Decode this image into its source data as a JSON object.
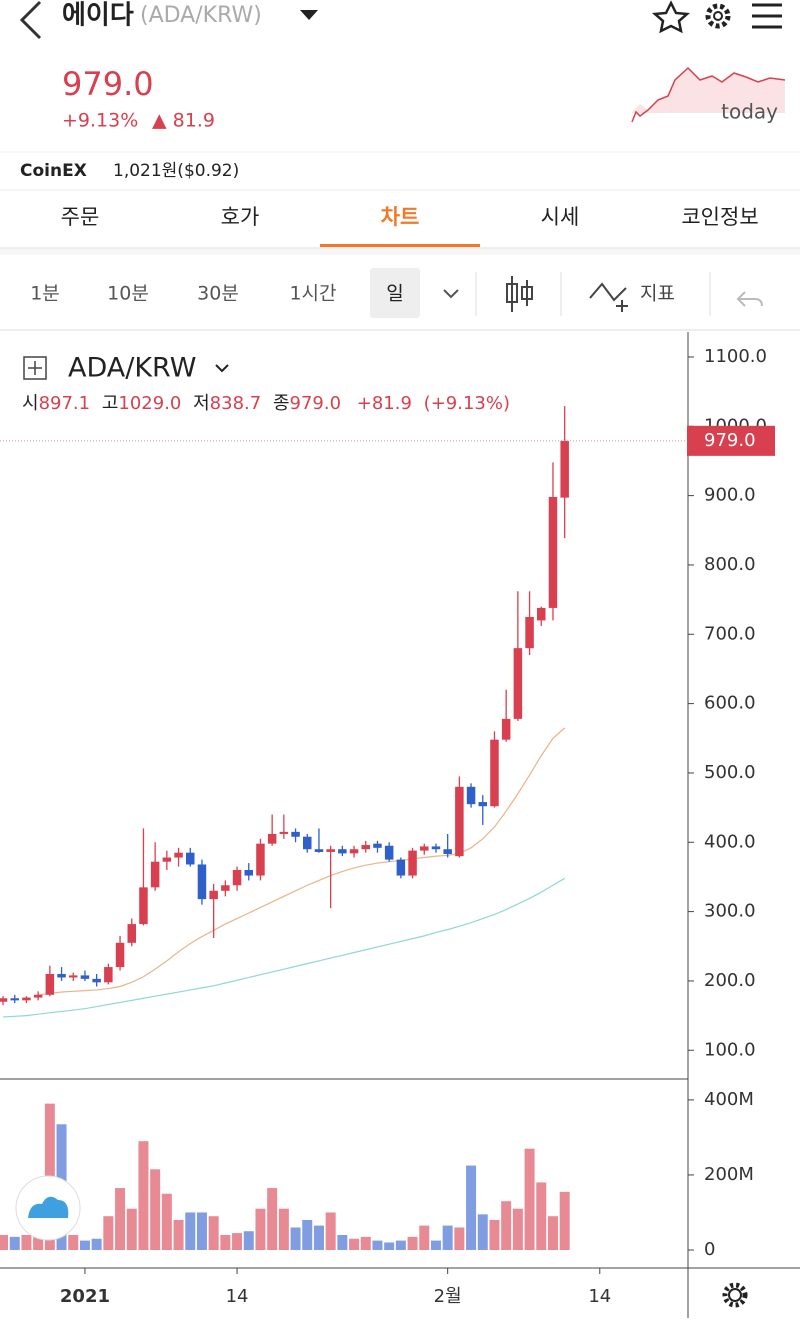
{
  "header": {
    "name": "에이다",
    "pair": "(ADA/KRW)",
    "price": "979.0",
    "change_pct": "+9.13%",
    "change_abs": "▲ 81.9",
    "spark_label": "today"
  },
  "exchange": {
    "name": "CoinEX",
    "price": "1,021원($0.92)"
  },
  "tabs": [
    "주문",
    "호가",
    "차트",
    "시세",
    "코인정보"
  ],
  "active_tab": 2,
  "intervals": [
    "1분",
    "10분",
    "30분",
    "1시간",
    "일"
  ],
  "active_interval": 4,
  "indicator_button": "지표",
  "chart_data": {
    "type": "candlestick",
    "title": "ADA/KRW",
    "ohlc_keys": [
      "시",
      "고",
      "저",
      "종"
    ],
    "ohlc_labels": [
      "897.1",
      "1029.0",
      "838.7",
      "979.0"
    ],
    "change_label": "+81.9",
    "change_pct_label": "(+9.13%)",
    "open": [
      170,
      175,
      172,
      176,
      180,
      210,
      205,
      208,
      203,
      198,
      220,
      255,
      282,
      335,
      372,
      378,
      385,
      368,
      318,
      330,
      338,
      360,
      352,
      398,
      412,
      415,
      408,
      390,
      386,
      390,
      384,
      390,
      398,
      395,
      375,
      352,
      388,
      394,
      390,
      380,
      480,
      458,
      452,
      548,
      578,
      680,
      720,
      738,
      897.1
    ],
    "high": [
      178,
      180,
      178,
      185,
      222,
      220,
      212,
      215,
      210,
      225,
      265,
      290,
      420,
      400,
      388,
      392,
      392,
      375,
      340,
      345,
      365,
      370,
      405,
      440,
      440,
      420,
      412,
      420,
      395,
      395,
      395,
      402,
      402,
      400,
      378,
      392,
      398,
      398,
      412,
      495,
      485,
      468,
      560,
      620,
      762,
      762,
      740,
      948,
      1029
    ],
    "low": [
      165,
      168,
      168,
      172,
      178,
      200,
      200,
      200,
      192,
      195,
      215,
      250,
      280,
      330,
      360,
      365,
      365,
      310,
      262,
      322,
      330,
      345,
      345,
      395,
      405,
      400,
      385,
      385,
      305,
      380,
      378,
      385,
      385,
      372,
      348,
      348,
      382,
      385,
      378,
      378,
      450,
      425,
      450,
      545,
      575,
      670,
      712,
      720,
      838.7
    ],
    "close": [
      175,
      172,
      176,
      180,
      210,
      205,
      208,
      203,
      198,
      220,
      255,
      282,
      335,
      372,
      378,
      385,
      368,
      318,
      330,
      338,
      360,
      352,
      398,
      412,
      415,
      408,
      390,
      386,
      390,
      384,
      390,
      396,
      392,
      375,
      352,
      388,
      394,
      390,
      383,
      480,
      455,
      452,
      548,
      578,
      680,
      725,
      738,
      898,
      979
    ],
    "series": [
      {
        "color": "#e8b48a",
        "values": [
          null,
          null,
          null,
          180,
          182,
          184,
          185,
          186,
          187,
          189,
          192,
          198,
          206,
          217,
          229,
          242,
          254,
          264,
          273,
          282,
          290,
          298,
          306,
          314,
          322,
          330,
          338,
          345,
          352,
          358,
          363,
          367,
          370,
          372,
          374,
          376,
          378,
          380,
          381,
          384,
          392,
          405,
          422,
          445,
          470,
          497,
          525,
          550,
          565
        ]
      },
      {
        "color": "#8fd8d2",
        "values": [
          148,
          149,
          150,
          152,
          154,
          156,
          158,
          160,
          163,
          166,
          169,
          172,
          175,
          178,
          181,
          184,
          187,
          190,
          193,
          197,
          201,
          205,
          209,
          213,
          217,
          221,
          225,
          229,
          233,
          237,
          241,
          245,
          249,
          253,
          257,
          261,
          265,
          270,
          274,
          279,
          284,
          290,
          296,
          303,
          311,
          319,
          328,
          338,
          348
        ]
      }
    ],
    "up_color": "#d9404f",
    "down_color": "#2f5fc8",
    "volume_up_color": "#e88a94",
    "volume_down_color": "#7f9de0",
    "xlim": [
      -0.26,
      58.54
    ],
    "xticks": [
      {
        "value": 7,
        "label": "2021"
      },
      {
        "value": 20,
        "label": "14"
      },
      {
        "value": 38,
        "label": "2월"
      },
      {
        "value": 51,
        "label": "14"
      }
    ],
    "ylim": [
      60,
      1136
    ],
    "yticks": [
      {
        "value": 100,
        "label": "100.0"
      },
      {
        "value": 200,
        "label": "200.0"
      },
      {
        "value": 300,
        "label": "300.0"
      },
      {
        "value": 400,
        "label": "400.0"
      },
      {
        "value": 500,
        "label": "500.0"
      },
      {
        "value": 600,
        "label": "600.0"
      },
      {
        "value": 700,
        "label": "700.0"
      },
      {
        "value": 800,
        "label": "800.0"
      },
      {
        "value": 900,
        "label": "900.0"
      },
      {
        "value": 1000,
        "label": "1000.0"
      },
      {
        "value": 1100,
        "label": "1100.0"
      }
    ],
    "volume": [
      40,
      35,
      40,
      45,
      390,
      335,
      40,
      25,
      30,
      90,
      165,
      110,
      290,
      215,
      150,
      80,
      100,
      100,
      90,
      40,
      45,
      50,
      110,
      165,
      110,
      60,
      80,
      65,
      100,
      40,
      30,
      35,
      25,
      20,
      25,
      35,
      65,
      25,
      65,
      60,
      225,
      95,
      80,
      130,
      110,
      270,
      180,
      90,
      155
    ],
    "volume_ylim": [
      -40,
      453
    ],
    "volume_yticks": [
      0,
      {
        "value": 200,
        "label": "200M"
      },
      {
        "value": 400,
        "label": "400M"
      }
    ]
  }
}
